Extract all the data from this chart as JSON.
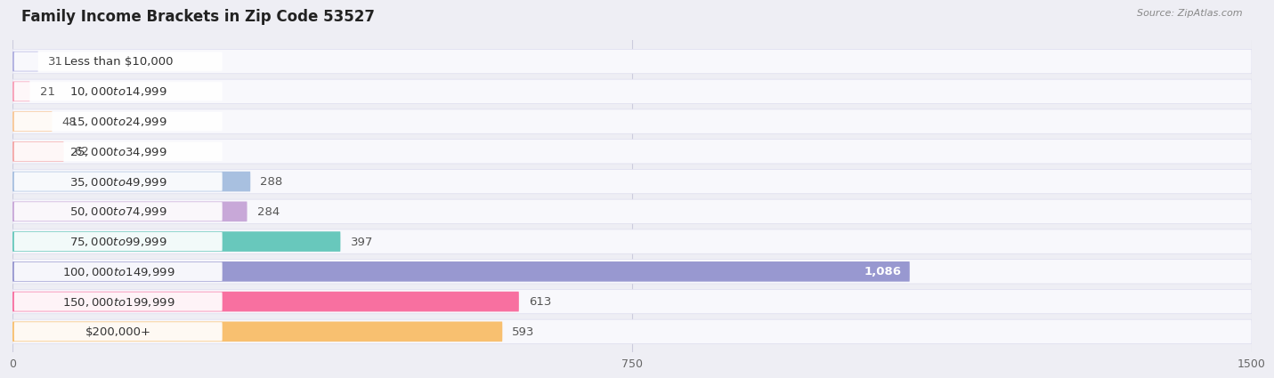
{
  "title": "Family Income Brackets in Zip Code 53527",
  "source": "Source: ZipAtlas.com",
  "categories": [
    "Less than $10,000",
    "$10,000 to $14,999",
    "$15,000 to $24,999",
    "$25,000 to $34,999",
    "$35,000 to $49,999",
    "$50,000 to $74,999",
    "$75,000 to $99,999",
    "$100,000 to $149,999",
    "$150,000 to $199,999",
    "$200,000+"
  ],
  "values": [
    31,
    21,
    48,
    62,
    288,
    284,
    397,
    1086,
    613,
    593
  ],
  "bar_colors": [
    "#b0b0e0",
    "#f8a0b8",
    "#f8c898",
    "#f4a8a8",
    "#a8c0e0",
    "#c8a8d8",
    "#68c8bc",
    "#9898d0",
    "#f870a0",
    "#f8c070"
  ],
  "value_label_color_inside": "#ffffff",
  "value_label_color_outside": "#555555",
  "inside_threshold": 1000,
  "xlim": [
    0,
    1500
  ],
  "xticks": [
    0,
    750,
    1500
  ],
  "background_color": "#eeeef4",
  "bar_bg_color": "#f8f8fc",
  "label_pill_color": "#ffffff",
  "title_fontsize": 12,
  "label_fontsize": 9.5,
  "value_fontsize": 9.5,
  "tick_fontsize": 9
}
